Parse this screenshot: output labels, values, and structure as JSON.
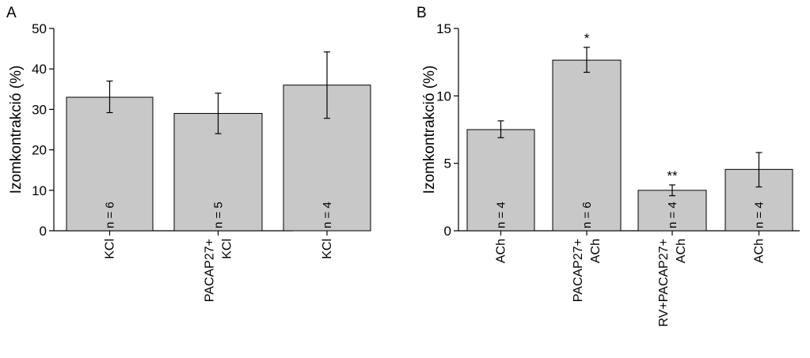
{
  "chart_data": [
    {
      "type": "bar",
      "panel_label": "A",
      "ylabel": "Izomkontrakció (%)",
      "ylim": [
        0,
        50
      ],
      "yticks": [
        0,
        10,
        20,
        30,
        40,
        50
      ],
      "categories": [
        [
          "KCl"
        ],
        [
          "PACAP27+",
          "KCl"
        ],
        [
          "KCl"
        ]
      ],
      "values": [
        33,
        29,
        36
      ],
      "errors": [
        [
          29.2,
          37.0
        ],
        [
          24.0,
          34.0
        ],
        [
          27.8,
          44.2
        ]
      ],
      "n_labels": [
        "n = 6",
        "n = 5",
        "n = 4"
      ],
      "significance": [
        "",
        "",
        ""
      ],
      "colors": {
        "bar": "#c8c8c8",
        "edge": "#000000"
      }
    },
    {
      "type": "bar",
      "panel_label": "B",
      "ylabel": "Izomkontrakció (%)",
      "ylim": [
        0,
        15
      ],
      "yticks": [
        0,
        5,
        10,
        15
      ],
      "categories": [
        [
          "ACh"
        ],
        [
          "PACAP27+",
          "ACh"
        ],
        [
          "RV+PACAP27+",
          "ACh"
        ],
        [
          "ACh"
        ]
      ],
      "values": [
        7.5,
        12.65,
        3.0,
        4.55
      ],
      "errors": [
        [
          6.9,
          8.15
        ],
        [
          11.75,
          13.6
        ],
        [
          2.6,
          3.4
        ],
        [
          3.25,
          5.8
        ]
      ],
      "n_labels": [
        "n = 4",
        "n = 6",
        "n = 4",
        "n = 4"
      ],
      "significance": [
        "",
        "*",
        "**",
        ""
      ],
      "colors": {
        "bar": "#c8c8c8",
        "edge": "#000000"
      }
    }
  ]
}
